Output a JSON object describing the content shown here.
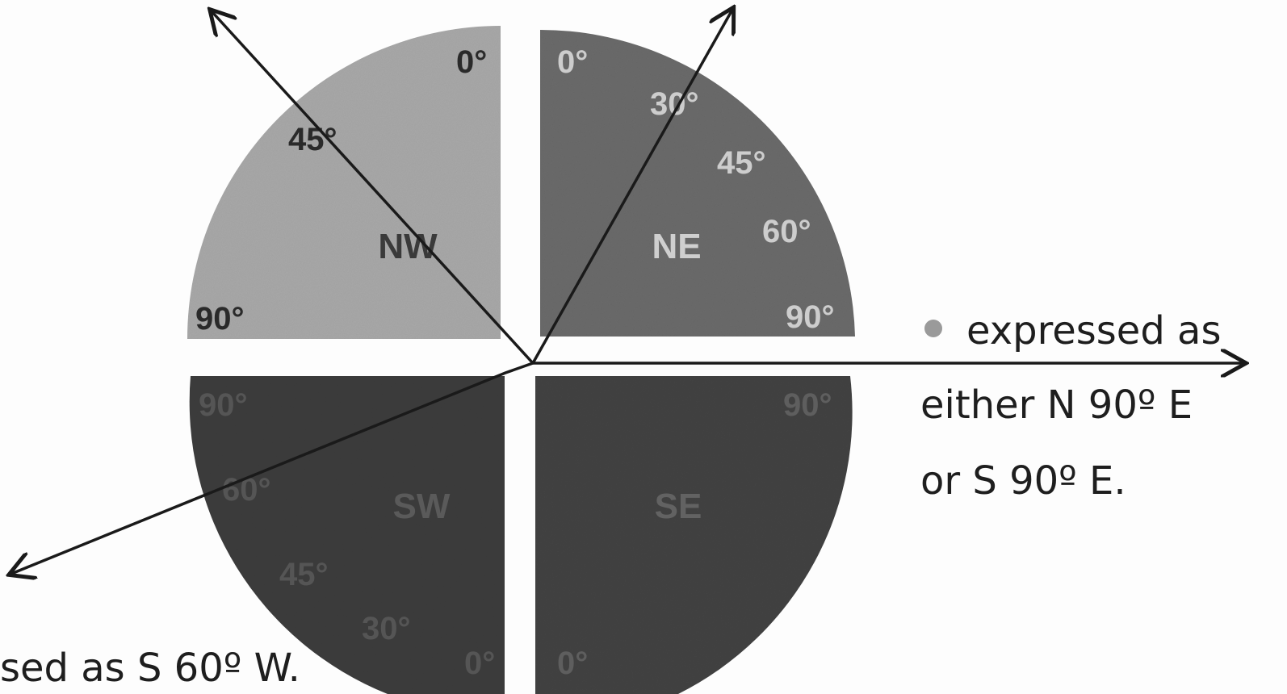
{
  "quadrants": {
    "nw": {
      "label": "NW",
      "color": "#a8a8a8",
      "label_color": "#3a3a3a"
    },
    "ne": {
      "label": "NE",
      "color": "#6a6a6a",
      "label_color": "#cfcfcf"
    },
    "sw": {
      "label": "SW",
      "color": "#3c3c3c",
      "label_color": "#5a5a5a"
    },
    "se": {
      "label": "SE",
      "color": "#424242",
      "label_color": "#626262"
    }
  },
  "degree_marks": {
    "nw": [
      "0°",
      "45°",
      "90°"
    ],
    "ne": [
      "0°",
      "30°",
      "45°",
      "60°",
      "90°"
    ],
    "sw": [
      "90°",
      "60°",
      "45°",
      "30°",
      "0°"
    ],
    "se": [
      "90°",
      "0°"
    ]
  },
  "text": {
    "right_line1": "expressed as",
    "right_line2": "either N 90º E",
    "right_line3": "or S 90º E.",
    "bottom_left": "sed as S 60º W."
  },
  "icons": [
    "bullet-dot-icon",
    "arrow-head-icon"
  ],
  "colors": {
    "arrow": "#1a1a1a",
    "bullet": "#9a9a9a",
    "text": "#1e1e1e"
  }
}
